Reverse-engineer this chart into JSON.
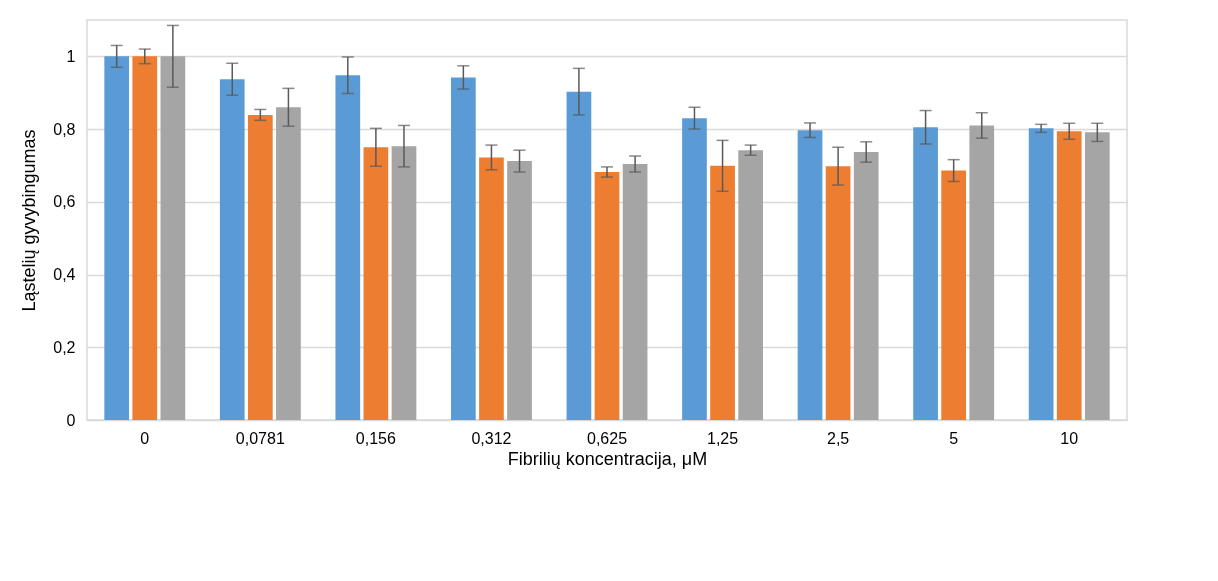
{
  "chart_data": {
    "type": "bar",
    "xlabel": "Fibrilių koncentracija, μM",
    "ylabel": "Ląstelių gyvybingumas",
    "categories": [
      "0",
      "0,0781",
      "0,156",
      "0,312",
      "0,625",
      "1,25",
      "2,5",
      "5",
      "10"
    ],
    "series": [
      {
        "color": "#5b9bd5",
        "values": [
          1.0,
          0.937,
          0.948,
          0.942,
          0.903,
          0.83,
          0.797,
          0.805,
          0.802
        ],
        "errors": [
          0.03,
          0.044,
          0.05,
          0.032,
          0.064,
          0.03,
          0.02,
          0.046,
          0.011
        ]
      },
      {
        "color": "#ed7d31",
        "values": [
          1.0,
          0.839,
          0.75,
          0.722,
          0.682,
          0.699,
          0.698,
          0.686,
          0.794
        ],
        "errors": [
          0.02,
          0.015,
          0.052,
          0.034,
          0.014,
          0.07,
          0.052,
          0.03,
          0.022
        ]
      },
      {
        "color": "#a5a5a5",
        "values": [
          1.0,
          0.86,
          0.753,
          0.712,
          0.704,
          0.742,
          0.737,
          0.81,
          0.791
        ],
        "errors": [
          0.085,
          0.052,
          0.057,
          0.03,
          0.022,
          0.014,
          0.028,
          0.035,
          0.025
        ]
      }
    ],
    "ylim": [
      0,
      1.1
    ],
    "yticks": [
      0,
      {
        "value": 0.2,
        "label": "0,2"
      },
      {
        "value": 0.4,
        "label": "0,4"
      },
      {
        "value": 0.6,
        "label": "0,6"
      },
      {
        "value": 0.8,
        "label": "0,8"
      },
      1
    ],
    "grid": "y",
    "legend": false
  }
}
